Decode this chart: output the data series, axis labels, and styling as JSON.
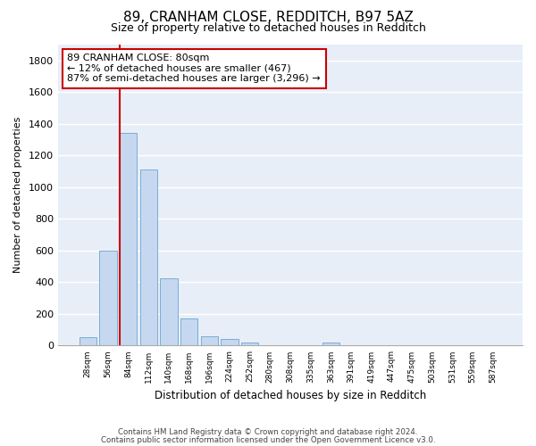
{
  "title": "89, CRANHAM CLOSE, REDDITCH, B97 5AZ",
  "subtitle": "Size of property relative to detached houses in Redditch",
  "xlabel": "Distribution of detached houses by size in Redditch",
  "ylabel": "Number of detached properties",
  "bar_color": "#c5d8f0",
  "bar_edge_color": "#7aadd4",
  "background_color": "#e8eef8",
  "grid_color": "#ffffff",
  "categories": [
    "28sqm",
    "56sqm",
    "84sqm",
    "112sqm",
    "140sqm",
    "168sqm",
    "196sqm",
    "224sqm",
    "252sqm",
    "280sqm",
    "308sqm",
    "335sqm",
    "363sqm",
    "391sqm",
    "419sqm",
    "447sqm",
    "475sqm",
    "503sqm",
    "531sqm",
    "559sqm",
    "587sqm"
  ],
  "values": [
    55,
    600,
    1345,
    1110,
    425,
    170,
    60,
    40,
    18,
    0,
    0,
    0,
    18,
    0,
    0,
    0,
    0,
    0,
    0,
    0,
    0
  ],
  "vline_color": "#cc0000",
  "annotation_text": "89 CRANHAM CLOSE: 80sqm\n← 12% of detached houses are smaller (467)\n87% of semi-detached houses are larger (3,296) →",
  "annotation_box_color": "#cc0000",
  "ylim": [
    0,
    1900
  ],
  "yticks": [
    0,
    200,
    400,
    600,
    800,
    1000,
    1200,
    1400,
    1600,
    1800
  ],
  "footnote1": "Contains HM Land Registry data © Crown copyright and database right 2024.",
  "footnote2": "Contains public sector information licensed under the Open Government Licence v3.0."
}
